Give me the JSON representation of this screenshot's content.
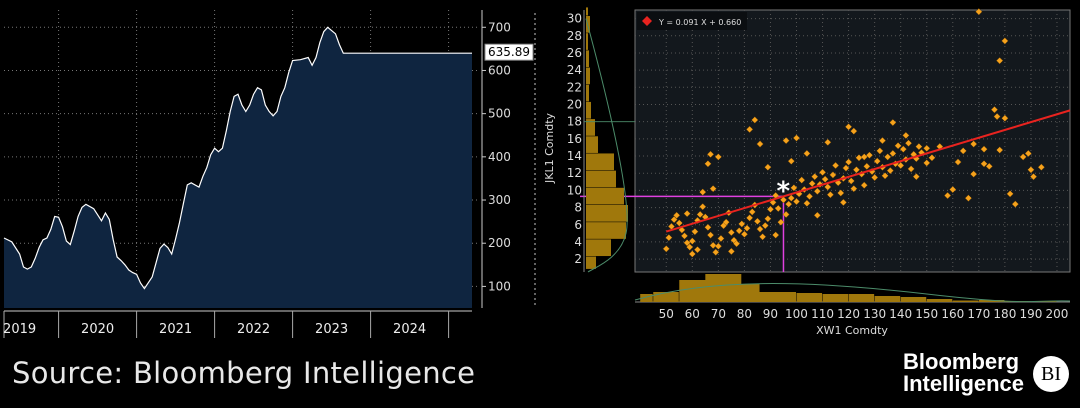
{
  "source_text": "Source: Bloomberg Intelligence",
  "logo": {
    "line1": "Bloomberg",
    "line2": "Intelligence",
    "badge": "BI"
  },
  "colors": {
    "area_fill": "#0f2540",
    "line": "#ffffff",
    "scatter_bg": "#13181d",
    "point": "#f6a21c",
    "fit": "#e8231f",
    "marker": "#e040e0",
    "hist": "#a0780c"
  },
  "chart_data": [
    {
      "type": "area",
      "x_ticks": [
        "2019",
        "2020",
        "2021",
        "2022",
        "2023",
        "2024"
      ],
      "y_ticks": [
        "100",
        "200",
        "300",
        "400",
        "500",
        "600",
        "700"
      ],
      "ylim": [
        50,
        740
      ],
      "last_value_label": "635.89",
      "x": [
        2018.55,
        2018.65,
        2018.75,
        2018.8,
        2018.85,
        2018.9,
        2018.95,
        2019.0,
        2019.05,
        2019.1,
        2019.15,
        2019.2,
        2019.25,
        2019.3,
        2019.35,
        2019.4,
        2019.45,
        2019.5,
        2019.55,
        2019.6,
        2019.7,
        2019.8,
        2019.85,
        2019.9,
        2019.95,
        2020.0,
        2020.05,
        2020.1,
        2020.15,
        2020.2,
        2020.25,
        2020.3,
        2020.35,
        2020.45,
        2020.55,
        2020.6,
        2020.65,
        2020.7,
        2020.75,
        2020.8,
        2020.85,
        2020.9,
        2020.95,
        2021.05,
        2021.1,
        2021.15,
        2021.2,
        2021.25,
        2021.3,
        2021.35,
        2021.4,
        2021.45,
        2021.5,
        2021.55,
        2021.6,
        2021.65,
        2021.7,
        2021.75,
        2021.8,
        2021.85,
        2021.9,
        2021.95,
        2022.0,
        2022.05,
        2022.1,
        2022.15,
        2022.2,
        2022.25,
        2022.35,
        2022.45,
        2022.5,
        2022.55,
        2022.6,
        2022.65,
        2022.7,
        2022.8,
        2022.85,
        2022.9,
        2022.95,
        2023.0,
        2023.05,
        2023.1,
        2023.15,
        2023.2,
        2023.25,
        2023.3,
        2023.35,
        2023.4,
        2023.45,
        2023.5,
        2023.55,
        2023.6,
        2023.65,
        2023.7,
        2023.75,
        2023.8,
        2023.85,
        2023.9,
        2023.95,
        2024.0,
        2024.05,
        2024.1,
        2024.15,
        2024.2,
        2024.25,
        2024.3,
        2024.35,
        2024.4,
        2024.45,
        2024.55
      ],
      "y": [
        212,
        203,
        175,
        145,
        140,
        145,
        165,
        190,
        208,
        212,
        232,
        262,
        260,
        238,
        205,
        197,
        228,
        262,
        283,
        290,
        280,
        252,
        270,
        255,
        208,
        168,
        160,
        150,
        138,
        132,
        128,
        108,
        95,
        122,
        188,
        198,
        190,
        175,
        210,
        248,
        292,
        335,
        340,
        330,
        355,
        375,
        405,
        420,
        412,
        420,
        460,
        505,
        540,
        545,
        520,
        505,
        520,
        545,
        560,
        555,
        520,
        505,
        495,
        505,
        540,
        560,
        595,
        623,
        625,
        630,
        612,
        630,
        665,
        690,
        700,
        685,
        660,
        640,
        640,
        640,
        640,
        640,
        640,
        640,
        640,
        640,
        640,
        640,
        640,
        640,
        640,
        640,
        640,
        640,
        640,
        640,
        640,
        640,
        640,
        640,
        640,
        640,
        640,
        640,
        640,
        640,
        640,
        640,
        640,
        640
      ]
    },
    {
      "type": "scatter",
      "xlabel": "XW1 Comdty",
      "ylabel": "JKL1 Comdty",
      "legend": "Y = 0.091 X + 0.660",
      "x_ticks": [
        "50",
        "60",
        "70",
        "80",
        "90",
        "100",
        "110",
        "120",
        "130",
        "140",
        "150",
        "160",
        "170",
        "180",
        "190",
        "200"
      ],
      "y_ticks": [
        "2",
        "4",
        "6",
        "8",
        "10",
        "12",
        "14",
        "16",
        "18",
        "20",
        "22",
        "24",
        "26",
        "28",
        "30"
      ],
      "xlim": [
        38,
        205
      ],
      "ylim": [
        0.5,
        31
      ],
      "fit": {
        "slope": 0.091,
        "intercept": 0.66,
        "x_start": 50,
        "x_end": 205
      },
      "current_point": {
        "x": 95,
        "y": 9.3
      },
      "points": [
        [
          50,
          3.2
        ],
        [
          51,
          4.5
        ],
        [
          52,
          5.8
        ],
        [
          53,
          6.6
        ],
        [
          54,
          7.1
        ],
        [
          55,
          6.2
        ],
        [
          56,
          5.4
        ],
        [
          57,
          4.7
        ],
        [
          58,
          3.9
        ],
        [
          59,
          3.4
        ],
        [
          60,
          4.1
        ],
        [
          61,
          5.2
        ],
        [
          62,
          6.5
        ],
        [
          63,
          7.2
        ],
        [
          64,
          8.1
        ],
        [
          65,
          6.9
        ],
        [
          66,
          5.7
        ],
        [
          67,
          4.8
        ],
        [
          68,
          3.6
        ],
        [
          69,
          2.8
        ],
        [
          70,
          3.5
        ],
        [
          71,
          4.4
        ],
        [
          72,
          5.9
        ],
        [
          73,
          6.3
        ],
        [
          74,
          7.4
        ],
        [
          75,
          5.1
        ],
        [
          76,
          4.2
        ],
        [
          77,
          3.8
        ],
        [
          78,
          5.3
        ],
        [
          79,
          6.1
        ],
        [
          80,
          4.9
        ],
        [
          81,
          5.6
        ],
        [
          82,
          6.8
        ],
        [
          83,
          7.5
        ],
        [
          84,
          8.3
        ],
        [
          85,
          6.4
        ],
        [
          86,
          5.5
        ],
        [
          87,
          4.6
        ],
        [
          88,
          5.9
        ],
        [
          89,
          6.7
        ],
        [
          90,
          7.8
        ],
        [
          91,
          8.6
        ],
        [
          92,
          9.4
        ],
        [
          93,
          7.9
        ],
        [
          94,
          6.3
        ],
        [
          95,
          8.9
        ],
        [
          96,
          7.2
        ],
        [
          97,
          8.4
        ],
        [
          98,
          9.1
        ],
        [
          99,
          10.3
        ],
        [
          100,
          8.7
        ],
        [
          101,
          9.6
        ],
        [
          102,
          11.2
        ],
        [
          103,
          10.1
        ],
        [
          104,
          8.5
        ],
        [
          105,
          9.3
        ],
        [
          106,
          10.8
        ],
        [
          107,
          11.6
        ],
        [
          108,
          9.9
        ],
        [
          109,
          10.7
        ],
        [
          110,
          12.1
        ],
        [
          111,
          11.3
        ],
        [
          112,
          10.4
        ],
        [
          113,
          9.5
        ],
        [
          114,
          11.8
        ],
        [
          115,
          12.9
        ],
        [
          116,
          10.9
        ],
        [
          117,
          9.7
        ],
        [
          118,
          11.4
        ],
        [
          119,
          12.6
        ],
        [
          120,
          13.3
        ],
        [
          121,
          11.1
        ],
        [
          122,
          10.2
        ],
        [
          123,
          12.4
        ],
        [
          124,
          13.8
        ],
        [
          125,
          11.9
        ],
        [
          126,
          10.6
        ],
        [
          127,
          12.8
        ],
        [
          128,
          14.1
        ],
        [
          129,
          12.2
        ],
        [
          130,
          11.5
        ],
        [
          131,
          13.4
        ],
        [
          132,
          14.6
        ],
        [
          133,
          12.7
        ],
        [
          134,
          11.7
        ],
        [
          135,
          13.9
        ],
        [
          136,
          12.3
        ],
        [
          137,
          14.3
        ],
        [
          138,
          13.1
        ],
        [
          139,
          15.2
        ],
        [
          140,
          12.9
        ],
        [
          141,
          14.8
        ],
        [
          142,
          13.6
        ],
        [
          143,
          15.5
        ],
        [
          144,
          12.5
        ],
        [
          145,
          14.2
        ],
        [
          146,
          13.7
        ],
        [
          147,
          15.1
        ],
        [
          148,
          14.4
        ],
        [
          150,
          13.2
        ],
        [
          58,
          7.3
        ],
        [
          60,
          2.6
        ],
        [
          62,
          3.1
        ],
        [
          64,
          9.8
        ],
        [
          66,
          13.1
        ],
        [
          67,
          14.2
        ],
        [
          68,
          10.2
        ],
        [
          70,
          13.9
        ],
        [
          75,
          2.9
        ],
        [
          82,
          17.1
        ],
        [
          84,
          18.2
        ],
        [
          86,
          15.4
        ],
        [
          89,
          12.7
        ],
        [
          92,
          4.8
        ],
        [
          96,
          15.8
        ],
        [
          98,
          13.4
        ],
        [
          100,
          16.1
        ],
        [
          104,
          14.3
        ],
        [
          108,
          7.1
        ],
        [
          112,
          15.6
        ],
        [
          118,
          8.6
        ],
        [
          120,
          17.4
        ],
        [
          122,
          16.9
        ],
        [
          126,
          13.9
        ],
        [
          133,
          15.8
        ],
        [
          137,
          17.9
        ],
        [
          142,
          16.4
        ],
        [
          146,
          11.6
        ],
        [
          150,
          14.9
        ],
        [
          152,
          13.8
        ],
        [
          155,
          15.1
        ],
        [
          158,
          9.4
        ],
        [
          160,
          10.1
        ],
        [
          162,
          13.3
        ],
        [
          164,
          14.6
        ],
        [
          166,
          9.1
        ],
        [
          168,
          15.4
        ],
        [
          170,
          30.8
        ],
        [
          172,
          13.1
        ],
        [
          174,
          12.8
        ],
        [
          176,
          19.4
        ],
        [
          177,
          18.6
        ],
        [
          178,
          14.7
        ],
        [
          180,
          27.4
        ],
        [
          182,
          9.6
        ],
        [
          184,
          8.4
        ],
        [
          187,
          13.9
        ],
        [
          189,
          14.3
        ],
        [
          190,
          12.4
        ],
        [
          191,
          11.6
        ],
        [
          194,
          12.7
        ],
        [
          178,
          25.1
        ],
        [
          180,
          18.4
        ],
        [
          172,
          14.8
        ],
        [
          168,
          11.9
        ]
      ],
      "x_hist": [
        [
          40,
          5,
          8
        ],
        [
          45,
          10,
          10
        ],
        [
          55,
          12,
          22
        ],
        [
          65,
          14,
          28
        ],
        [
          72,
          14,
          18
        ],
        [
          80,
          12,
          10
        ],
        [
          90,
          10,
          10
        ],
        [
          100,
          10,
          9
        ],
        [
          110,
          10,
          8
        ],
        [
          120,
          10,
          8
        ],
        [
          130,
          10,
          6
        ],
        [
          140,
          10,
          5
        ],
        [
          150,
          10,
          3
        ],
        [
          160,
          10,
          1.5
        ],
        [
          170,
          10,
          2
        ],
        [
          180,
          10,
          1
        ],
        [
          190,
          10,
          0.6
        ]
      ],
      "y_hist": [
        [
          0.8,
          1.5,
          10
        ],
        [
          2.3,
          2,
          25
        ],
        [
          4.3,
          2,
          40
        ],
        [
          6.3,
          2,
          42
        ],
        [
          8.3,
          2,
          38
        ],
        [
          10.3,
          2,
          30
        ],
        [
          12.3,
          2,
          28
        ],
        [
          14.3,
          2,
          12
        ],
        [
          16.3,
          2,
          9
        ],
        [
          18.3,
          2,
          5
        ],
        [
          20.3,
          2,
          3
        ],
        [
          22.3,
          2,
          4
        ],
        [
          24.3,
          2,
          3
        ],
        [
          26.3,
          2,
          2
        ],
        [
          28.3,
          2,
          4
        ],
        [
          30.3,
          1,
          2
        ]
      ]
    }
  ]
}
